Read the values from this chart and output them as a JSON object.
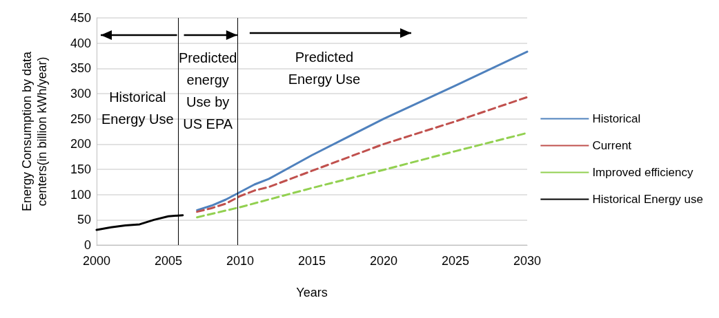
{
  "chart_data": {
    "type": "line",
    "xlabel": "Years",
    "ylabel": "Energy Consumption by data\ncenters(in billion kWh/year)",
    "xlim": [
      2000,
      2030
    ],
    "xticks": [
      2000,
      2005,
      2010,
      2015,
      2020,
      2025,
      2030
    ],
    "ylim": [
      0,
      450
    ],
    "yticks": [
      0,
      50,
      100,
      150,
      200,
      250,
      300,
      350,
      400,
      450
    ],
    "grid": "y",
    "legend": "right",
    "marker": "none",
    "series": [
      {
        "name": "Historical",
        "color": "#4f81bd",
        "line_style": "solid",
        "x": [
          2007,
          2008,
          2009,
          2010,
          2011,
          2012,
          2015,
          2020,
          2025,
          2030
        ],
        "values": [
          69,
          78,
          90,
          105,
          120,
          131,
          178,
          250,
          316,
          383
        ]
      },
      {
        "name": "Current",
        "color": "#c0504d",
        "line_style": "dashed",
        "x": [
          2007,
          2008,
          2009,
          2010,
          2011,
          2012,
          2015,
          2020,
          2025,
          2030
        ],
        "values": [
          66,
          73,
          82,
          97,
          108,
          115,
          147,
          200,
          245,
          293
        ]
      },
      {
        "name": "Improved efficiency",
        "color": "#92d050",
        "line_style": "dashed",
        "x": [
          2007,
          2010,
          2015,
          2020,
          2025,
          2030
        ],
        "values": [
          55,
          75,
          113,
          149,
          186,
          222
        ]
      },
      {
        "name": "Historical Energy use",
        "color": "#000000",
        "line_style": "solid",
        "x": [
          2000,
          2001,
          2002,
          2003,
          2004,
          2005,
          2006
        ],
        "values": [
          30,
          35,
          39,
          41,
          50,
          57,
          59
        ]
      }
    ],
    "ref_lines": [
      {
        "axis": "x",
        "value": 2005.7,
        "color": "#000000"
      },
      {
        "axis": "x",
        "value": 2009.8,
        "color": "#000000"
      }
    ],
    "annotations": [
      "Historical\nEnergy Use",
      "Predicted\nenergy\nUse by\nUS EPA",
      "Predicted\nEnergy Use"
    ]
  }
}
